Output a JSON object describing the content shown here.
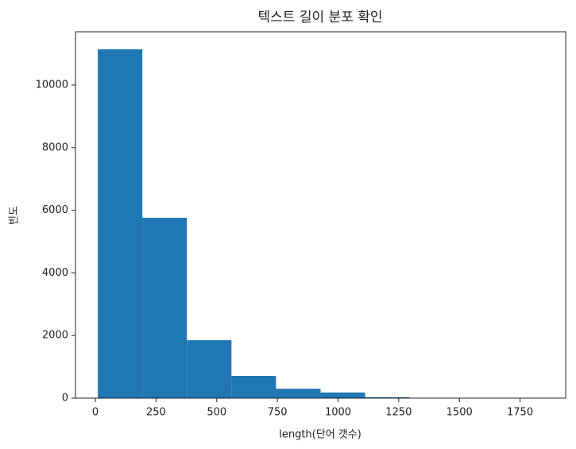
{
  "chart_data": {
    "type": "histogram",
    "title": "텍스트 길이 분포 확인",
    "x_label": "length(단어 갯수)",
    "y_label": "빈도",
    "bins": [
      10,
      193.6,
      377.2,
      560.8,
      744.4,
      928,
      1111.6,
      1295.2,
      1478.8,
      1662.4,
      1846
    ],
    "values": [
      11140,
      5760,
      1850,
      710,
      300,
      180,
      30,
      8,
      3,
      2
    ],
    "color": "#1f77b4",
    "xlim": [
      -82,
      1938
    ],
    "ylim": [
      0,
      11700
    ],
    "xticks": [
      0,
      250,
      500,
      750,
      1000,
      1250,
      1500,
      1750
    ],
    "yticks": [
      0,
      2000,
      4000,
      6000,
      8000,
      10000
    ]
  }
}
